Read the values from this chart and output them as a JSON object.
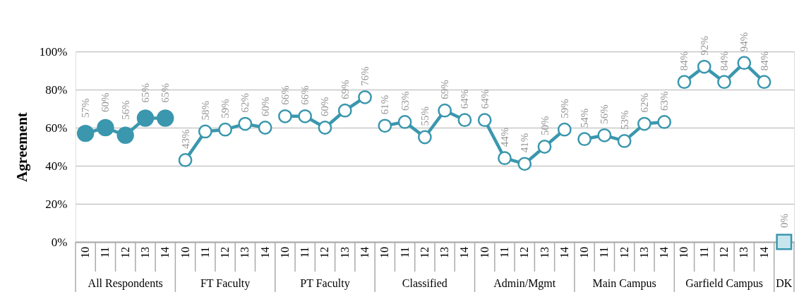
{
  "chart_data": {
    "type": "line",
    "ylabel": "Agreement",
    "categories": [
      "10",
      "11",
      "12",
      "13",
      "14",
      "10",
      "11",
      "12",
      "13",
      "14",
      "10",
      "11",
      "12",
      "13",
      "14",
      "10",
      "11",
      "12",
      "13",
      "14",
      "10",
      "11",
      "12",
      "13",
      "14",
      "10",
      "11",
      "12",
      "13",
      "14",
      "10",
      "11",
      "12",
      "13",
      "14",
      null
    ],
    "ylim": [
      0,
      100
    ],
    "yticks": [
      {
        "value": 0,
        "label": "0%"
      },
      {
        "value": 20,
        "label": "20%"
      },
      {
        "value": 40,
        "label": "40%"
      },
      {
        "value": 60,
        "label": "60%"
      },
      {
        "value": 80,
        "label": "80%"
      },
      {
        "value": 100,
        "label": "100%"
      }
    ],
    "grid": "y",
    "annotations": [
      "All Respondents",
      "FT Faculty",
      "PT Faculty",
      "Classified",
      "Admin/Mgmt",
      "Main Campus",
      "Garfield Campus",
      "DK"
    ],
    "series": [
      {
        "marker": "circle",
        "color": "#3a97ae",
        "values": [
          57,
          60,
          56,
          65,
          65,
          null,
          null,
          null,
          null,
          null,
          null,
          null,
          null,
          null,
          null,
          null,
          null,
          null,
          null,
          null,
          null,
          null,
          null,
          null,
          null,
          null,
          null,
          null,
          null,
          null,
          null,
          null,
          null,
          null,
          null,
          null
        ],
        "value_labels": [
          "57%",
          "60%",
          "56%",
          "65%",
          "65%",
          null,
          null,
          null,
          null,
          null,
          null,
          null,
          null,
          null,
          null,
          null,
          null,
          null,
          null,
          null,
          null,
          null,
          null,
          null,
          null,
          null,
          null,
          null,
          null,
          null,
          null,
          null,
          null,
          null,
          null,
          null
        ]
      },
      {
        "marker": "circle",
        "color": "#3a97ae",
        "values": [
          null,
          null,
          null,
          null,
          null,
          43,
          58,
          59,
          62,
          60,
          null,
          null,
          null,
          null,
          null,
          null,
          null,
          null,
          null,
          null,
          null,
          null,
          null,
          null,
          null,
          null,
          null,
          null,
          null,
          null,
          null,
          null,
          null,
          null,
          null,
          null
        ],
        "value_labels": [
          null,
          null,
          null,
          null,
          null,
          "43%",
          "58%",
          "59%",
          "62%",
          "60%",
          null,
          null,
          null,
          null,
          null,
          null,
          null,
          null,
          null,
          null,
          null,
          null,
          null,
          null,
          null,
          null,
          null,
          null,
          null,
          null,
          null,
          null,
          null,
          null,
          null,
          null
        ]
      },
      {
        "marker": "circle",
        "color": "#3a97ae",
        "values": [
          null,
          null,
          null,
          null,
          null,
          null,
          null,
          null,
          null,
          null,
          66,
          66,
          60,
          69,
          76,
          null,
          null,
          null,
          null,
          null,
          null,
          null,
          null,
          null,
          null,
          null,
          null,
          null,
          null,
          null,
          null,
          null,
          null,
          null,
          null,
          null
        ],
        "value_labels": [
          null,
          null,
          null,
          null,
          null,
          null,
          null,
          null,
          null,
          null,
          "66%",
          "66%",
          "60%",
          "69%",
          "76%",
          null,
          null,
          null,
          null,
          null,
          null,
          null,
          null,
          null,
          null,
          null,
          null,
          null,
          null,
          null,
          null,
          null,
          null,
          null,
          null,
          null
        ]
      },
      {
        "marker": "circle",
        "color": "#3a97ae",
        "values": [
          null,
          null,
          null,
          null,
          null,
          null,
          null,
          null,
          null,
          null,
          null,
          null,
          null,
          null,
          null,
          61,
          63,
          55,
          69,
          64,
          null,
          null,
          null,
          null,
          null,
          null,
          null,
          null,
          null,
          null,
          null,
          null,
          null,
          null,
          null,
          null
        ],
        "value_labels": [
          null,
          null,
          null,
          null,
          null,
          null,
          null,
          null,
          null,
          null,
          null,
          null,
          null,
          null,
          null,
          "61%",
          "63%",
          "55%",
          "69%",
          "64%",
          null,
          null,
          null,
          null,
          null,
          null,
          null,
          null,
          null,
          null,
          null,
          null,
          null,
          null,
          null,
          null
        ]
      },
      {
        "marker": "circle",
        "color": "#3a97ae",
        "values": [
          null,
          null,
          null,
          null,
          null,
          null,
          null,
          null,
          null,
          null,
          null,
          null,
          null,
          null,
          null,
          null,
          null,
          null,
          null,
          null,
          64,
          44,
          41,
          50,
          59,
          null,
          null,
          null,
          null,
          null,
          null,
          null,
          null,
          null,
          null,
          null
        ],
        "value_labels": [
          null,
          null,
          null,
          null,
          null,
          null,
          null,
          null,
          null,
          null,
          null,
          null,
          null,
          null,
          null,
          null,
          null,
          null,
          null,
          null,
          "64%",
          "44%",
          "41%",
          "50%",
          "59%",
          null,
          null,
          null,
          null,
          null,
          null,
          null,
          null,
          null,
          null,
          null
        ]
      },
      {
        "marker": "circle",
        "color": "#3a97ae",
        "values": [
          null,
          null,
          null,
          null,
          null,
          null,
          null,
          null,
          null,
          null,
          null,
          null,
          null,
          null,
          null,
          null,
          null,
          null,
          null,
          null,
          null,
          null,
          null,
          null,
          null,
          54,
          56,
          53,
          62,
          63,
          null,
          null,
          null,
          null,
          null,
          null
        ],
        "value_labels": [
          null,
          null,
          null,
          null,
          null,
          null,
          null,
          null,
          null,
          null,
          null,
          null,
          null,
          null,
          null,
          null,
          null,
          null,
          null,
          null,
          null,
          null,
          null,
          null,
          null,
          "54%",
          "56%",
          "53%",
          "62%",
          "63%",
          null,
          null,
          null,
          null,
          null,
          null
        ]
      },
      {
        "marker": "circle",
        "color": "#3a97ae",
        "values": [
          null,
          null,
          null,
          null,
          null,
          null,
          null,
          null,
          null,
          null,
          null,
          null,
          null,
          null,
          null,
          null,
          null,
          null,
          null,
          null,
          null,
          null,
          null,
          null,
          null,
          null,
          null,
          null,
          null,
          null,
          84,
          92,
          84,
          94,
          84,
          null
        ],
        "value_labels": [
          null,
          null,
          null,
          null,
          null,
          null,
          null,
          null,
          null,
          null,
          null,
          null,
          null,
          null,
          null,
          null,
          null,
          null,
          null,
          null,
          null,
          null,
          null,
          null,
          null,
          null,
          null,
          null,
          null,
          null,
          "84%",
          "92%",
          "84%",
          "94%",
          "84%",
          null
        ]
      },
      {
        "type": "scatter",
        "marker": "square",
        "color": "#3a97ae",
        "values": [
          null,
          null,
          null,
          null,
          null,
          null,
          null,
          null,
          null,
          null,
          null,
          null,
          null,
          null,
          null,
          null,
          null,
          null,
          null,
          null,
          null,
          null,
          null,
          null,
          null,
          null,
          null,
          null,
          null,
          null,
          null,
          null,
          null,
          null,
          null,
          0
        ],
        "value_labels": [
          null,
          null,
          null,
          null,
          null,
          null,
          null,
          null,
          null,
          null,
          null,
          null,
          null,
          null,
          null,
          null,
          null,
          null,
          null,
          null,
          null,
          null,
          null,
          null,
          null,
          null,
          null,
          null,
          null,
          null,
          null,
          null,
          null,
          null,
          null,
          "0%"
        ]
      }
    ]
  }
}
